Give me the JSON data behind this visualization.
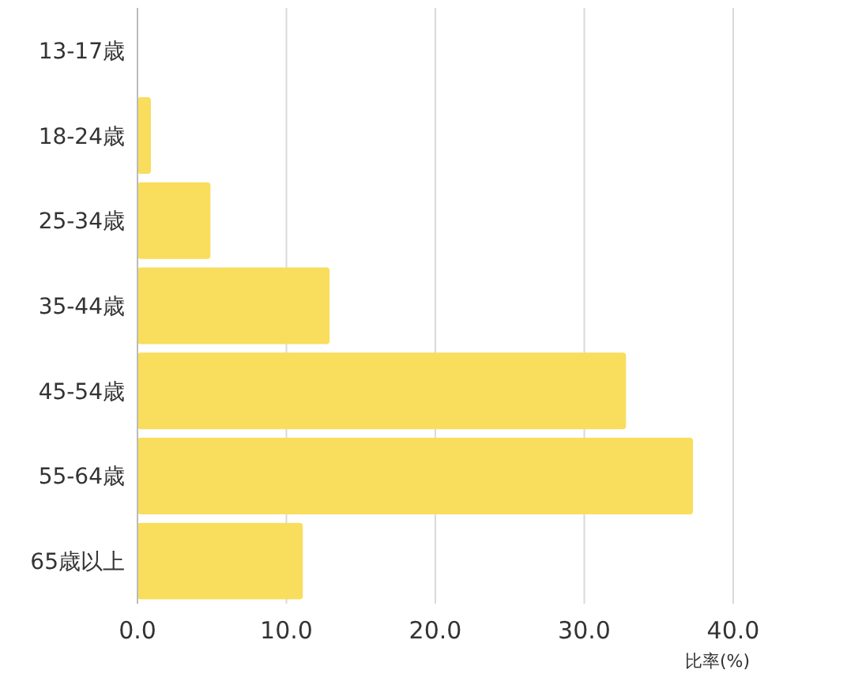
{
  "chart_data": {
    "type": "bar",
    "orientation": "horizontal",
    "xlabel": "比率(%)",
    "categories": [
      "13-17歳",
      "18-24歳",
      "25-34歳",
      "35-44歳",
      "45-54歳",
      "55-64歳",
      "65歳以上"
    ],
    "values": [
      0,
      0.9,
      4.9,
      12.9,
      32.8,
      37.3,
      11.1
    ],
    "color": "#f9dd5d",
    "xlim": [
      0,
      40
    ],
    "xticks": [
      {
        "value": 0,
        "label": "0.0"
      },
      {
        "value": 10,
        "label": "10.0"
      },
      {
        "value": 20,
        "label": "20.0"
      },
      {
        "value": 30,
        "label": "30.0"
      },
      {
        "value": 40,
        "label": "40.0"
      }
    ],
    "grid": "x"
  }
}
